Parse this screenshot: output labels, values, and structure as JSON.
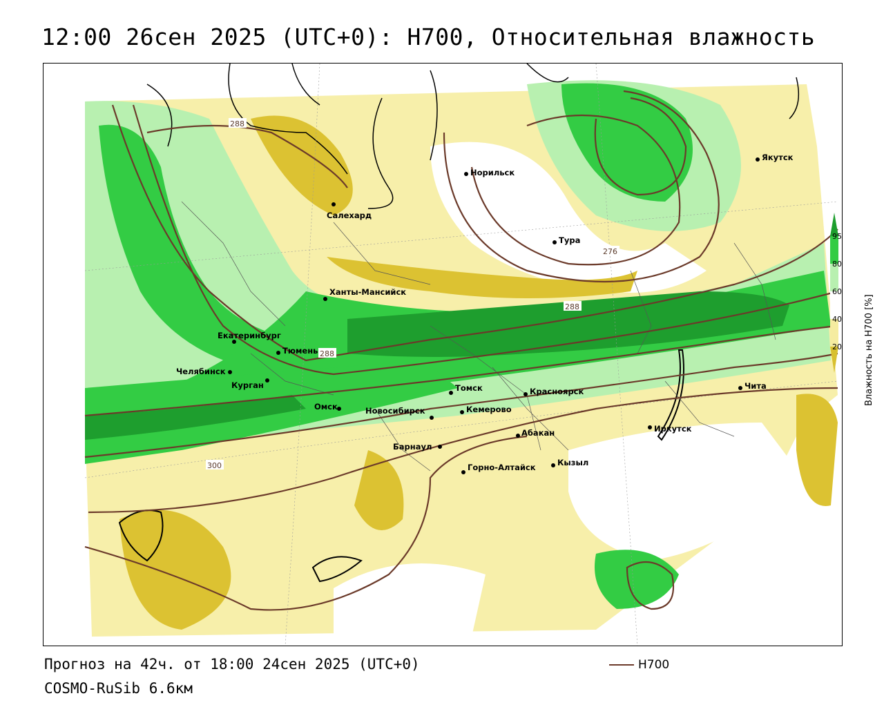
{
  "title": "12:00 26сен 2025 (UTC+0): H700, Относительная влажность",
  "forecast_text": "Прогноз на 42ч. от 18:00 24сен 2025 (UTC+0)",
  "model_text": "COSMO-RuSib 6.6км",
  "contour_legend": "H700",
  "colorbar": {
    "title": "Влажность на H700 [%]",
    "ticks": [
      "95",
      "80",
      "60",
      "40",
      "20"
    ],
    "colors": {
      "c95": "#1e9e2e",
      "c80": "#33cc44",
      "c60": "#b8f0b0",
      "c40": "#ffffff",
      "c20": "#f5eca0",
      "low": "#d8c030"
    }
  },
  "cities": [
    {
      "name": "Салехард"
    },
    {
      "name": "Норильск"
    },
    {
      "name": "Тура"
    },
    {
      "name": "Якутск"
    },
    {
      "name": "Ханты-Мансийск"
    },
    {
      "name": "Екатеринбург"
    },
    {
      "name": "Тюмень"
    },
    {
      "name": "Челябинск"
    },
    {
      "name": "Курган"
    },
    {
      "name": "Омск"
    },
    {
      "name": "Томск"
    },
    {
      "name": "Красноярск"
    },
    {
      "name": "Новосибирск"
    },
    {
      "name": "Кемерово"
    },
    {
      "name": "Абакан"
    },
    {
      "name": "Барнаул"
    },
    {
      "name": "Горно-Алтайск"
    },
    {
      "name": "Кызыл"
    },
    {
      "name": "Иркутск"
    },
    {
      "name": "Чита"
    }
  ],
  "isolines": [
    {
      "label": "288"
    },
    {
      "label": "276"
    },
    {
      "label": "288"
    },
    {
      "label": "288"
    },
    {
      "label": "300"
    }
  ]
}
